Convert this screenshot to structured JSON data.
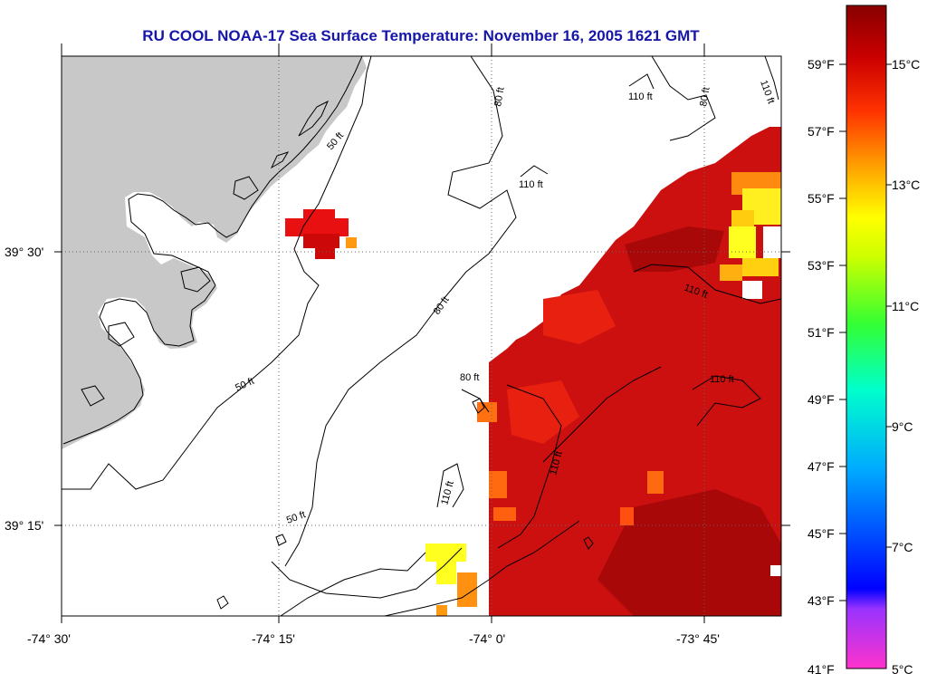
{
  "title": "RU COOL  NOAA-17  Sea Surface Temperature:  November 16, 2005 1621 GMT",
  "x_axis": {
    "ticks": [
      "-74° 30'",
      "-74° 15'",
      "-74° 0'",
      "-73° 45'"
    ]
  },
  "y_axis": {
    "ticks": [
      "39° 30'",
      "39° 15'"
    ]
  },
  "contours": {
    "labels": [
      "50 ft",
      "50 ft",
      "50 ft",
      "80 ft",
      "80 ft",
      "80 ft",
      "80 ft",
      "110 ft",
      "110 ft",
      "110 ft",
      "110 ft",
      "110 ft",
      "110 ft",
      "110 ft"
    ]
  },
  "colorbar": {
    "fahrenheit": [
      "59°F",
      "57°F",
      "55°F",
      "53°F",
      "51°F",
      "49°F",
      "47°F",
      "45°F",
      "43°F",
      "41°F"
    ],
    "celsius": [
      "15°C",
      "13°C",
      "11°C",
      "9°C",
      "7°C",
      "5°C"
    ],
    "colors": [
      "#ff33cc",
      "#9933ff",
      "#0000ff",
      "#00aaff",
      "#00ffcc",
      "#33ff33",
      "#ccff00",
      "#ffff00",
      "#ffaa00",
      "#ff3300",
      "#cc0000",
      "#880000"
    ]
  },
  "legend_colors": {
    "land": "#c8c8c8",
    "sst_high": "#cc0000",
    "sst_mid": "#ff9900",
    "sst_low": "#ffff00",
    "title": "#1616a8"
  }
}
